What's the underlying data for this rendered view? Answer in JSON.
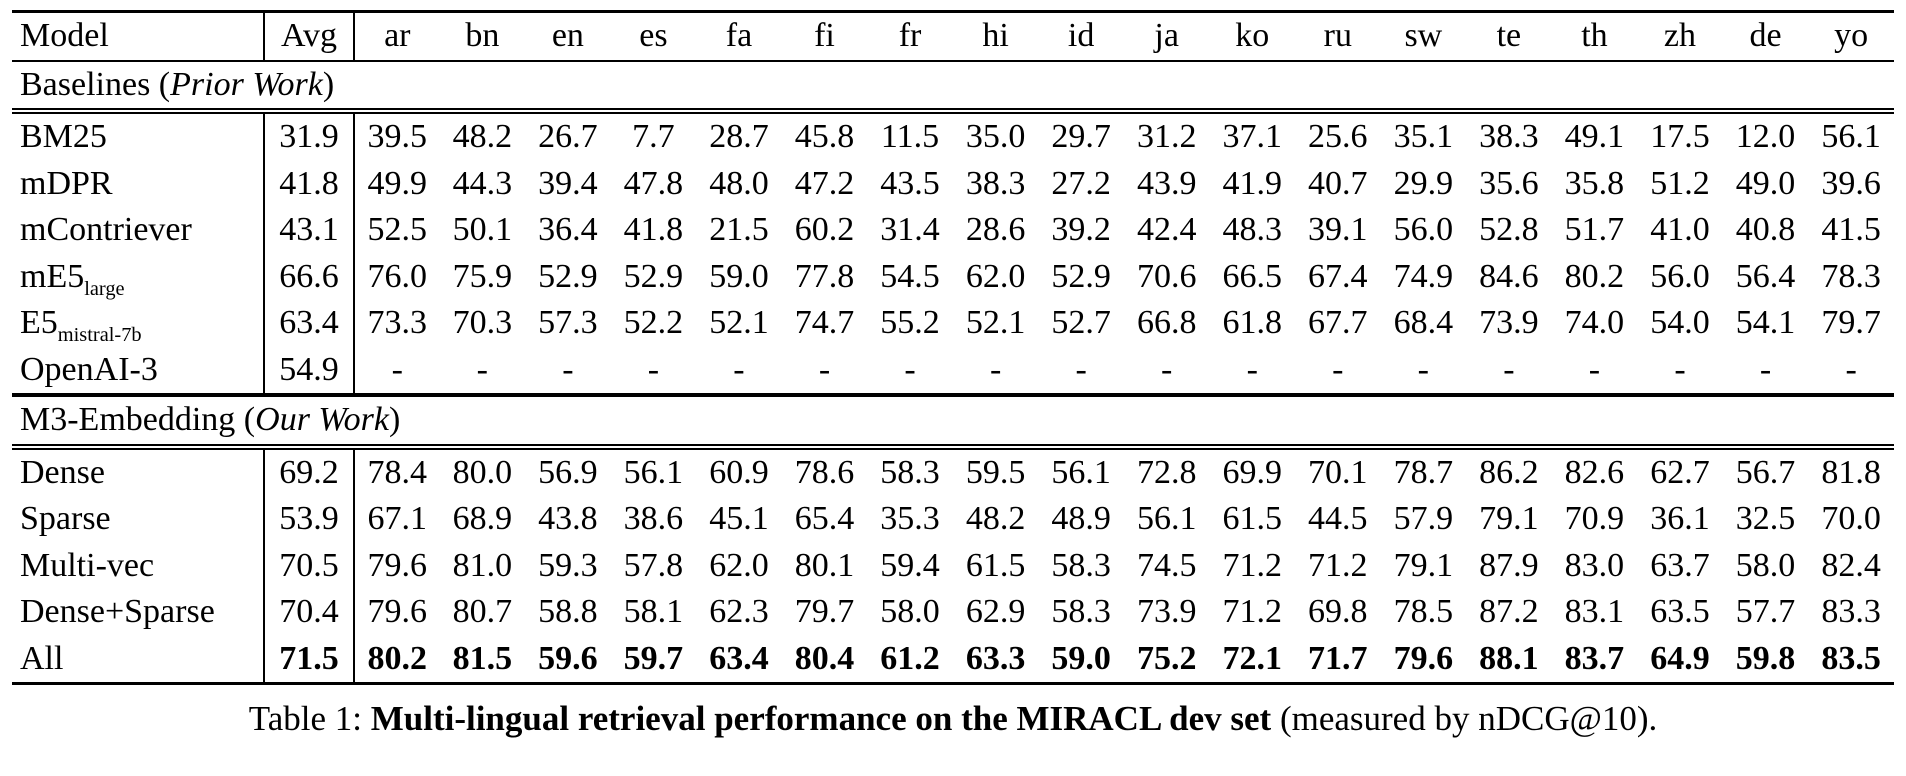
{
  "table": {
    "columns": [
      "Model",
      "Avg",
      "ar",
      "bn",
      "en",
      "es",
      "fa",
      "fi",
      "fr",
      "hi",
      "id",
      "ja",
      "ko",
      "ru",
      "sw",
      "te",
      "th",
      "zh",
      "de",
      "yo"
    ],
    "sections": [
      {
        "label_prefix": "Baselines (",
        "label_italic": "Prior Work",
        "label_suffix": ")",
        "rows": [
          {
            "model": "BM25",
            "model_sub": "",
            "avg": "31.9",
            "bold": false,
            "values": [
              "39.5",
              "48.2",
              "26.7",
              "7.7",
              "28.7",
              "45.8",
              "11.5",
              "35.0",
              "29.7",
              "31.2",
              "37.1",
              "25.6",
              "35.1",
              "38.3",
              "49.1",
              "17.5",
              "12.0",
              "56.1"
            ]
          },
          {
            "model": "mDPR",
            "model_sub": "",
            "avg": "41.8",
            "bold": false,
            "values": [
              "49.9",
              "44.3",
              "39.4",
              "47.8",
              "48.0",
              "47.2",
              "43.5",
              "38.3",
              "27.2",
              "43.9",
              "41.9",
              "40.7",
              "29.9",
              "35.6",
              "35.8",
              "51.2",
              "49.0",
              "39.6"
            ]
          },
          {
            "model": "mContriever",
            "model_sub": "",
            "avg": "43.1",
            "bold": false,
            "values": [
              "52.5",
              "50.1",
              "36.4",
              "41.8",
              "21.5",
              "60.2",
              "31.4",
              "28.6",
              "39.2",
              "42.4",
              "48.3",
              "39.1",
              "56.0",
              "52.8",
              "51.7",
              "41.0",
              "40.8",
              "41.5"
            ]
          },
          {
            "model": "mE5",
            "model_sub": "large",
            "avg": "66.6",
            "bold": false,
            "values": [
              "76.0",
              "75.9",
              "52.9",
              "52.9",
              "59.0",
              "77.8",
              "54.5",
              "62.0",
              "52.9",
              "70.6",
              "66.5",
              "67.4",
              "74.9",
              "84.6",
              "80.2",
              "56.0",
              "56.4",
              "78.3"
            ]
          },
          {
            "model": "E5",
            "model_sub": "mistral-7b",
            "avg": "63.4",
            "bold": false,
            "values": [
              "73.3",
              "70.3",
              "57.3",
              "52.2",
              "52.1",
              "74.7",
              "55.2",
              "52.1",
              "52.7",
              "66.8",
              "61.8",
              "67.7",
              "68.4",
              "73.9",
              "74.0",
              "54.0",
              "54.1",
              "79.7"
            ]
          },
          {
            "model": "OpenAI-3",
            "model_sub": "",
            "avg": "54.9",
            "bold": false,
            "values": [
              "-",
              "-",
              "-",
              "-",
              "-",
              "-",
              "-",
              "-",
              "-",
              "-",
              "-",
              "-",
              "-",
              "-",
              "-",
              "-",
              "-",
              "-"
            ]
          }
        ]
      },
      {
        "label_prefix": "M3-Embedding (",
        "label_italic": "Our Work",
        "label_suffix": ")",
        "rows": [
          {
            "model": "Dense",
            "model_sub": "",
            "avg": "69.2",
            "bold": false,
            "values": [
              "78.4",
              "80.0",
              "56.9",
              "56.1",
              "60.9",
              "78.6",
              "58.3",
              "59.5",
              "56.1",
              "72.8",
              "69.9",
              "70.1",
              "78.7",
              "86.2",
              "82.6",
              "62.7",
              "56.7",
              "81.8"
            ]
          },
          {
            "model": "Sparse",
            "model_sub": "",
            "avg": "53.9",
            "bold": false,
            "values": [
              "67.1",
              "68.9",
              "43.8",
              "38.6",
              "45.1",
              "65.4",
              "35.3",
              "48.2",
              "48.9",
              "56.1",
              "61.5",
              "44.5",
              "57.9",
              "79.1",
              "70.9",
              "36.1",
              "32.5",
              "70.0"
            ]
          },
          {
            "model": "Multi-vec",
            "model_sub": "",
            "avg": "70.5",
            "bold": false,
            "values": [
              "79.6",
              "81.0",
              "59.3",
              "57.8",
              "62.0",
              "80.1",
              "59.4",
              "61.5",
              "58.3",
              "74.5",
              "71.2",
              "71.2",
              "79.1",
              "87.9",
              "83.0",
              "63.7",
              "58.0",
              "82.4"
            ]
          },
          {
            "model": "Dense+Sparse",
            "model_sub": "",
            "avg": "70.4",
            "bold": false,
            "values": [
              "79.6",
              "80.7",
              "58.8",
              "58.1",
              "62.3",
              "79.7",
              "58.0",
              "62.9",
              "58.3",
              "73.9",
              "71.2",
              "69.8",
              "78.5",
              "87.2",
              "83.1",
              "63.5",
              "57.7",
              "83.3"
            ]
          },
          {
            "model": "All",
            "model_sub": "",
            "avg": "71.5",
            "bold": true,
            "values": [
              "80.2",
              "81.5",
              "59.6",
              "59.7",
              "63.4",
              "80.4",
              "61.2",
              "63.3",
              "59.0",
              "75.2",
              "72.1",
              "71.7",
              "79.6",
              "88.1",
              "83.7",
              "64.9",
              "59.8",
              "83.5"
            ]
          }
        ]
      }
    ]
  },
  "caption": {
    "prefix": "Table 1: ",
    "bold": "Multi-lingual retrieval performance on the MIRACL dev set",
    "suffix": " (measured by nDCG@10)."
  }
}
